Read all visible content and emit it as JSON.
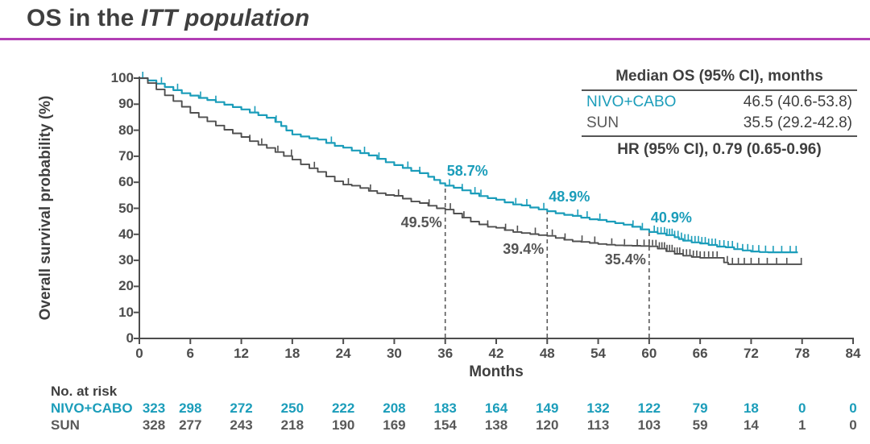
{
  "header": {
    "title_prefix": "OS in the ",
    "title_italic": "ITT population"
  },
  "colors": {
    "nivo_cabo": "#1B9DBA",
    "sun": "#4F4F4F",
    "accent_line": "#B23FB5",
    "axis": "#4D4D4D",
    "dashed_line": "#5A5A5A",
    "text": "#3F3F3F"
  },
  "chart_data": {
    "type": "line",
    "subtype": "kaplan-meier-step",
    "xlabel": "Months",
    "ylabel": "Overall survival probability (%)",
    "xlim": [
      0,
      84
    ],
    "ylim": [
      0,
      100
    ],
    "xticks": [
      0,
      6,
      12,
      18,
      24,
      30,
      36,
      42,
      48,
      54,
      60,
      66,
      72,
      78,
      84
    ],
    "yticks": [
      0,
      10,
      20,
      30,
      40,
      50,
      60,
      70,
      80,
      90,
      100
    ],
    "grid": false,
    "series": [
      {
        "name": "NIVO+CABO",
        "color": "#1B9DBA",
        "points": [
          [
            0,
            100
          ],
          [
            1,
            99.1
          ],
          [
            2,
            97.9
          ],
          [
            3,
            96.6
          ],
          [
            4,
            95.4
          ],
          [
            5,
            94.2
          ],
          [
            6,
            93.3
          ],
          [
            7,
            92.4
          ],
          [
            8,
            91.6
          ],
          [
            9,
            90.8
          ],
          [
            10,
            89.8
          ],
          [
            11,
            88.9
          ],
          [
            12,
            88.0
          ],
          [
            13,
            86.8
          ],
          [
            14,
            85.8
          ],
          [
            15,
            84.8
          ],
          [
            16,
            83.2
          ],
          [
            16.7,
            81.6
          ],
          [
            17.3,
            79.9
          ],
          [
            18,
            78.4
          ],
          [
            19,
            77.6
          ],
          [
            20,
            76.9
          ],
          [
            21,
            76.4
          ],
          [
            22,
            75.1
          ],
          [
            23,
            74.0
          ],
          [
            24,
            73.3
          ],
          [
            25,
            72.2
          ],
          [
            26,
            71.2
          ],
          [
            27,
            70.3
          ],
          [
            28,
            69.0
          ],
          [
            29,
            67.7
          ],
          [
            30,
            66.6
          ],
          [
            31,
            65.5
          ],
          [
            32,
            64.4
          ],
          [
            33,
            63.5
          ],
          [
            34,
            62.1
          ],
          [
            34.7,
            60.9
          ],
          [
            35.4,
            59.6
          ],
          [
            36,
            58.7
          ],
          [
            37,
            57.9
          ],
          [
            38,
            56.9
          ],
          [
            39,
            55.7
          ],
          [
            40,
            54.7
          ],
          [
            41,
            53.9
          ],
          [
            42,
            53.3
          ],
          [
            43,
            52.3
          ],
          [
            44,
            51.5
          ],
          [
            45,
            51.1
          ],
          [
            46,
            50.3
          ],
          [
            47,
            49.6
          ],
          [
            48,
            48.9
          ],
          [
            49,
            48.1
          ],
          [
            50,
            47.5
          ],
          [
            51,
            47.1
          ],
          [
            52,
            46.4
          ],
          [
            53,
            45.8
          ],
          [
            54,
            45.5
          ],
          [
            55,
            44.9
          ],
          [
            56,
            44.3
          ],
          [
            57,
            43.7
          ],
          [
            58,
            42.9
          ],
          [
            59,
            41.9
          ],
          [
            60,
            40.9
          ],
          [
            61,
            40.3
          ],
          [
            62,
            39.7
          ],
          [
            63,
            38.9
          ],
          [
            63.5,
            38.2
          ],
          [
            64,
            37.6
          ],
          [
            65,
            36.9
          ],
          [
            66,
            36.5
          ],
          [
            67,
            35.9
          ],
          [
            68,
            35.3
          ],
          [
            69,
            35.0
          ],
          [
            70,
            34.3
          ],
          [
            71,
            33.8
          ],
          [
            72,
            33.4
          ],
          [
            73,
            33.2
          ],
          [
            74,
            33.1
          ],
          [
            77.5,
            33.1
          ]
        ],
        "censors": [
          0.4,
          2.6,
          4.5,
          7.2,
          9.0,
          13.6,
          16.1,
          22.6,
          26.5,
          28.2,
          31.6,
          33.0,
          36.5,
          38.0,
          39.5,
          40.2,
          44.3,
          45.6,
          47.6,
          51.6,
          52.7,
          54.2,
          58.1,
          59.2,
          60.6,
          61.0,
          61.4,
          61.8,
          62.1,
          62.4,
          62.7,
          63.0,
          63.4,
          63.8,
          64.2,
          64.6,
          65.0,
          65.4,
          65.8,
          66.2,
          66.6,
          67.0,
          67.4,
          67.8,
          68.3,
          68.8,
          69.3,
          69.8,
          70.4,
          71.0,
          71.6,
          72.2,
          72.9,
          73.7,
          74.6,
          75.6,
          76.6,
          77.3
        ]
      },
      {
        "name": "SUN",
        "color": "#4F4F4F",
        "points": [
          [
            0,
            100
          ],
          [
            1,
            98.1
          ],
          [
            2,
            95.7
          ],
          [
            3,
            93.4
          ],
          [
            4,
            91.2
          ],
          [
            5,
            89.0
          ],
          [
            6,
            86.7
          ],
          [
            7,
            85.0
          ],
          [
            8,
            83.4
          ],
          [
            9,
            81.8
          ],
          [
            10,
            80.2
          ],
          [
            11,
            78.8
          ],
          [
            12,
            77.4
          ],
          [
            13,
            75.8
          ],
          [
            14,
            74.4
          ],
          [
            15,
            73.2
          ],
          [
            16,
            71.6
          ],
          [
            17,
            70.1
          ],
          [
            18,
            68.7
          ],
          [
            19,
            66.9
          ],
          [
            20,
            65.4
          ],
          [
            21,
            64.0
          ],
          [
            22,
            62.2
          ],
          [
            23,
            60.4
          ],
          [
            24,
            59.1
          ],
          [
            25,
            58.7
          ],
          [
            26,
            57.8
          ],
          [
            27,
            56.7
          ],
          [
            28,
            55.8
          ],
          [
            29,
            55.1
          ],
          [
            30,
            54.8
          ],
          [
            31,
            53.7
          ],
          [
            32,
            52.6
          ],
          [
            33,
            52.0
          ],
          [
            34,
            51.0
          ],
          [
            35,
            50.0
          ],
          [
            36,
            49.5
          ],
          [
            37,
            48.0
          ],
          [
            38,
            46.4
          ],
          [
            39,
            44.9
          ],
          [
            40,
            43.8
          ],
          [
            41,
            42.9
          ],
          [
            42,
            42.5
          ],
          [
            43,
            41.6
          ],
          [
            44,
            40.9
          ],
          [
            45,
            40.5
          ],
          [
            46,
            40.1
          ],
          [
            47,
            39.7
          ],
          [
            48,
            39.4
          ],
          [
            49,
            38.6
          ],
          [
            50,
            37.9
          ],
          [
            51,
            37.3
          ],
          [
            52,
            37.1
          ],
          [
            53,
            36.7
          ],
          [
            54,
            36.3
          ],
          [
            55,
            36.0
          ],
          [
            56,
            35.8
          ],
          [
            57,
            35.7
          ],
          [
            58,
            35.6
          ],
          [
            59,
            35.5
          ],
          [
            60,
            35.4
          ],
          [
            61,
            34.5
          ],
          [
            62,
            33.5
          ],
          [
            63,
            32.5
          ],
          [
            64,
            31.8
          ],
          [
            65,
            31.3
          ],
          [
            66,
            31.0
          ],
          [
            68.5,
            31.0
          ],
          [
            68.8,
            29.2
          ],
          [
            69.3,
            28.5
          ],
          [
            78,
            28.5
          ]
        ],
        "censors": [
          13.0,
          14.4,
          16.3,
          17.9,
          20.6,
          24.6,
          27.2,
          30.5,
          34.1,
          36.6,
          38.2,
          41.0,
          43.1,
          44.5,
          46.6,
          48.6,
          50.1,
          52.1,
          53.6,
          55.6,
          57.1,
          58.6,
          59.4,
          60.0,
          60.4,
          60.8,
          61.2,
          61.5,
          61.8,
          62.1,
          62.4,
          62.7,
          63.0,
          63.3,
          63.6,
          64.0,
          64.4,
          64.8,
          65.2,
          65.6,
          66.0,
          66.5,
          67.0,
          67.5,
          68.0,
          69.2,
          69.8,
          70.5,
          71.2,
          72.0,
          72.9,
          73.9,
          75.0,
          76.2,
          77.9
        ]
      }
    ],
    "landmarks": [
      {
        "month": 36,
        "labels": [
          {
            "series": 0,
            "text": "58.7%"
          },
          {
            "series": 1,
            "text": "49.5%"
          }
        ]
      },
      {
        "month": 48,
        "labels": [
          {
            "series": 0,
            "text": "48.9%"
          },
          {
            "series": 1,
            "text": "39.4%"
          }
        ]
      },
      {
        "month": 60,
        "labels": [
          {
            "series": 0,
            "text": "40.9%"
          },
          {
            "series": 1,
            "text": "35.4%"
          }
        ]
      }
    ]
  },
  "stats_table": {
    "header": "Median OS (95% CI), months",
    "rows": [
      {
        "label": "NIVO+CABO",
        "value": "46.5 (40.6-53.8)"
      },
      {
        "label": "SUN",
        "value": "35.5 (29.2-42.8)"
      }
    ],
    "footer": "HR (95% CI), 0.79 (0.65-0.96)"
  },
  "risk_table": {
    "title": "No. at risk",
    "rows": [
      {
        "label": "NIVO+CABO",
        "color": "#1B9DBA",
        "values": [
          323,
          298,
          272,
          250,
          222,
          208,
          183,
          164,
          149,
          132,
          122,
          79,
          18,
          0,
          0
        ]
      },
      {
        "label": "SUN",
        "color": "#595959",
        "values": [
          328,
          277,
          243,
          218,
          190,
          169,
          154,
          138,
          120,
          113,
          103,
          59,
          14,
          1,
          0
        ]
      }
    ]
  }
}
